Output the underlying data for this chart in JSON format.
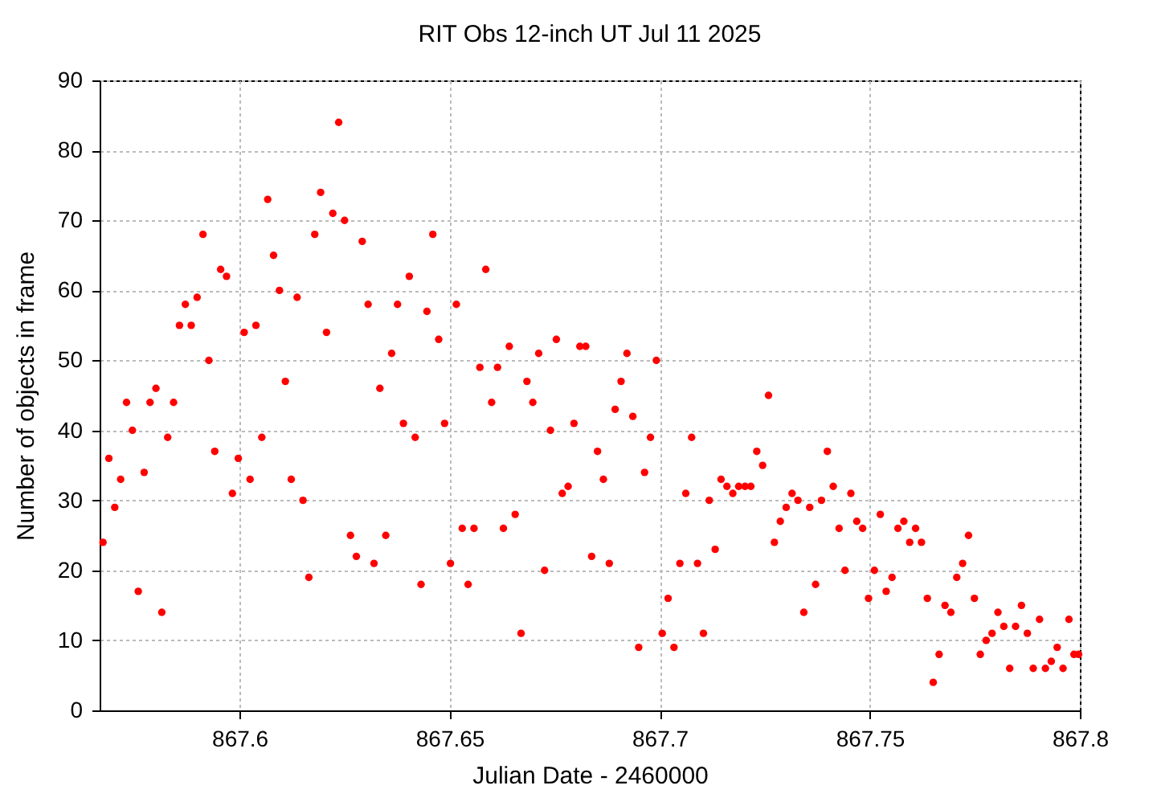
{
  "chart_data": {
    "type": "scatter",
    "title": "RIT Obs 12-inch UT Jul 11 2025",
    "xlabel": "Julian Date - 2460000",
    "ylabel": "Number of objects in frame",
    "x": [
      867.5675,
      867.5689,
      867.5703,
      867.5717,
      867.5731,
      867.5745,
      867.5759,
      867.5773,
      867.5787,
      867.5801,
      867.5815,
      867.5829,
      867.5843,
      867.5857,
      867.5871,
      867.5885,
      867.5899,
      867.5913,
      867.5927,
      867.5941,
      867.5955,
      867.5969,
      867.5983,
      867.5997,
      867.6011,
      867.6025,
      867.6039,
      867.6053,
      867.6067,
      867.6081,
      867.6095,
      867.6109,
      867.6123,
      867.6137,
      867.6151,
      867.6165,
      867.6179,
      867.6193,
      867.6207,
      867.6222,
      867.6236,
      867.625,
      867.6264,
      867.6278,
      867.6292,
      867.6306,
      867.632,
      867.6334,
      867.6348,
      867.6362,
      867.6376,
      867.639,
      867.6404,
      867.6418,
      867.6432,
      867.6446,
      867.646,
      867.6474,
      867.6488,
      867.6502,
      867.6516,
      867.653,
      867.6544,
      867.6558,
      867.6572,
      867.6586,
      867.66,
      867.6614,
      867.6628,
      867.6642,
      867.6656,
      867.667,
      867.6684,
      867.6698,
      867.6712,
      867.6726,
      867.674,
      867.6754,
      867.6768,
      867.6782,
      867.6796,
      867.681,
      867.6824,
      867.6838,
      867.6852,
      867.6866,
      867.688,
      867.6894,
      867.6908,
      867.6922,
      867.6936,
      867.695,
      867.6964,
      867.6978,
      867.6992,
      867.7006,
      867.702,
      867.7034,
      867.7048,
      867.7062,
      867.7076,
      867.709,
      867.7104,
      867.7118,
      867.7132,
      867.7146,
      867.716,
      867.7174,
      867.7188,
      867.7203,
      867.7217,
      867.7231,
      867.7245,
      867.7259,
      867.7273,
      867.7287,
      867.7301,
      867.7315,
      867.7329,
      867.7343,
      867.7357,
      867.7371,
      867.7385,
      867.7399,
      867.7413,
      867.7427,
      867.7441,
      867.7455,
      867.7469,
      867.7483,
      867.7497,
      867.7511,
      867.7525,
      867.7539,
      867.7553,
      867.7567,
      867.7581,
      867.7595,
      867.7609,
      867.7623,
      867.7637,
      867.7651,
      867.7665,
      867.7679,
      867.7693,
      867.7707,
      867.7721,
      867.7735,
      867.7749,
      867.7763,
      867.7777,
      867.7791,
      867.7805,
      867.7819,
      867.7833,
      867.7847,
      867.7861,
      867.7875,
      867.7889,
      867.7904,
      867.7918,
      867.7932,
      867.7946,
      867.796,
      867.7974,
      867.7986,
      867.7997
    ],
    "series": [
      {
        "color": "#ff0000",
        "values": [
          24,
          36,
          29,
          33,
          44,
          40,
          17,
          34,
          44,
          46,
          14,
          39,
          44,
          55,
          58,
          55,
          59,
          68,
          50,
          37,
          63,
          62,
          31,
          36,
          54,
          33,
          55,
          39,
          73,
          65,
          60,
          47,
          33,
          59,
          30,
          19,
          68,
          74,
          54,
          71,
          84,
          70,
          25,
          22,
          67,
          58,
          21,
          46,
          25,
          51,
          58,
          41,
          62,
          39,
          18,
          57,
          68,
          53,
          41,
          21,
          58,
          26,
          18,
          26,
          49,
          63,
          44,
          49,
          26,
          52,
          28,
          11,
          47,
          44,
          51,
          20,
          40,
          53,
          31,
          32,
          41,
          52,
          52,
          22,
          37,
          33,
          21,
          43,
          47,
          51,
          42,
          9,
          34,
          39,
          50,
          11,
          16,
          9,
          21,
          31,
          39,
          21,
          11,
          30,
          23,
          33,
          32,
          31,
          32,
          32,
          32,
          37,
          35,
          45,
          24,
          27,
          29,
          31,
          30,
          14,
          29,
          18,
          30,
          37,
          32,
          26,
          20,
          31,
          27,
          26,
          16,
          20,
          28,
          17,
          19,
          26,
          27,
          24,
          26,
          24,
          16,
          4,
          8,
          15,
          14,
          19,
          21,
          25,
          16,
          8,
          10,
          11,
          14,
          12,
          6,
          12,
          15,
          11,
          6,
          13,
          6,
          7,
          9,
          6,
          13,
          8,
          8
        ]
      }
    ],
    "xlim": [
      867.5667,
      867.8
    ],
    "ylim": [
      0,
      90
    ],
    "xticks": [
      867.6,
      867.65,
      867.7,
      867.75,
      867.8
    ],
    "yticks": [
      0,
      10,
      20,
      30,
      40,
      50,
      60,
      70,
      80,
      90
    ],
    "grid": true,
    "marker": "circle"
  }
}
